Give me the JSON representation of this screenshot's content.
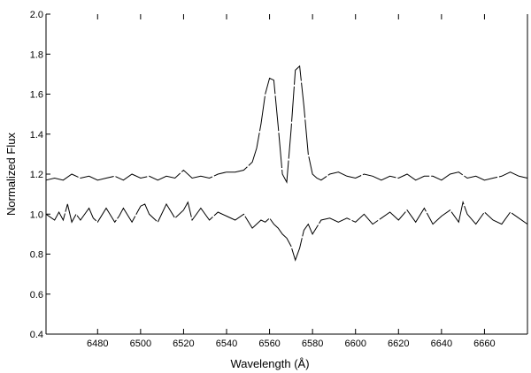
{
  "chart_data": {
    "type": "line",
    "title": "",
    "xlabel": "Wavelength (Å)",
    "ylabel": "Normalized Flux",
    "xlim": [
      6456,
      6680
    ],
    "ylim": [
      0.4,
      2.0
    ],
    "x_ticks": [
      6480,
      6500,
      6520,
      6540,
      6560,
      6580,
      6600,
      6620,
      6640,
      6660
    ],
    "y_ticks": [
      0.4,
      0.6,
      0.8,
      1.0,
      1.2,
      1.4,
      1.6,
      1.8,
      2.0
    ],
    "y_tick_labels": [
      "0.4",
      "0.6",
      "0.8",
      "1.0",
      "1.2",
      "1.4",
      "1.6",
      "1.8",
      "2.0"
    ],
    "grid": false,
    "legend": "none",
    "series": [
      {
        "x": [
          6456,
          6460,
          6464,
          6468,
          6472,
          6476,
          6480,
          6484,
          6488,
          6492,
          6496,
          6500,
          6504,
          6508,
          6512,
          6516,
          6520,
          6524,
          6528,
          6532,
          6536,
          6540,
          6544,
          6548,
          6552,
          6554,
          6556,
          6558,
          6560,
          6562,
          6564,
          6566,
          6568,
          6570,
          6572,
          6574,
          6576,
          6578,
          6580,
          6582,
          6584,
          6588,
          6592,
          6596,
          6600,
          6604,
          6608,
          6612,
          6616,
          6620,
          6624,
          6628,
          6632,
          6636,
          6640,
          6644,
          6648,
          6652,
          6656,
          6660,
          6664,
          6668,
          6672,
          6676,
          6680
        ],
        "y": [
          1.17,
          1.18,
          1.17,
          1.2,
          1.18,
          1.19,
          1.17,
          1.18,
          1.19,
          1.17,
          1.2,
          1.18,
          1.19,
          1.17,
          1.19,
          1.18,
          1.22,
          1.18,
          1.19,
          1.18,
          1.2,
          1.21,
          1.21,
          1.22,
          1.26,
          1.33,
          1.45,
          1.6,
          1.68,
          1.67,
          1.44,
          1.2,
          1.16,
          1.42,
          1.72,
          1.74,
          1.54,
          1.3,
          1.2,
          1.18,
          1.17,
          1.2,
          1.21,
          1.19,
          1.18,
          1.2,
          1.19,
          1.17,
          1.19,
          1.18,
          1.2,
          1.17,
          1.19,
          1.19,
          1.17,
          1.2,
          1.21,
          1.18,
          1.19,
          1.17,
          1.18,
          1.19,
          1.21,
          1.19,
          1.18
        ]
      },
      {
        "x": [
          6456,
          6460,
          6462,
          6464,
          6466,
          6468,
          6470,
          6472,
          6476,
          6478,
          6480,
          6484,
          6488,
          6490,
          6492,
          6496,
          6500,
          6502,
          6504,
          6508,
          6512,
          6516,
          6520,
          6522,
          6524,
          6528,
          6532,
          6536,
          6540,
          6544,
          6548,
          6552,
          6556,
          6558,
          6560,
          6562,
          6564,
          6566,
          6568,
          6570,
          6572,
          6574,
          6576,
          6578,
          6580,
          6584,
          6588,
          6592,
          6596,
          6600,
          6604,
          6608,
          6612,
          6616,
          6620,
          6624,
          6628,
          6632,
          6636,
          6640,
          6644,
          6648,
          6650,
          6652,
          6656,
          6660,
          6664,
          6668,
          6672,
          6676,
          6680
        ],
        "y": [
          1.0,
          0.97,
          1.01,
          0.97,
          1.05,
          0.96,
          1.0,
          0.97,
          1.03,
          0.98,
          0.96,
          1.03,
          0.96,
          0.99,
          1.03,
          0.96,
          1.04,
          1.05,
          1.0,
          0.96,
          1.05,
          0.98,
          1.02,
          1.06,
          0.97,
          1.03,
          0.97,
          1.01,
          0.99,
          0.97,
          1.0,
          0.93,
          0.97,
          0.96,
          0.98,
          0.95,
          0.93,
          0.9,
          0.88,
          0.84,
          0.77,
          0.83,
          0.92,
          0.95,
          0.9,
          0.97,
          0.98,
          0.96,
          0.98,
          0.96,
          1.0,
          0.95,
          0.98,
          1.01,
          0.97,
          1.02,
          0.96,
          1.03,
          0.95,
          0.99,
          1.02,
          0.96,
          1.06,
          1.0,
          0.95,
          1.01,
          0.97,
          0.95,
          1.01,
          0.98,
          0.95
        ]
      }
    ]
  }
}
